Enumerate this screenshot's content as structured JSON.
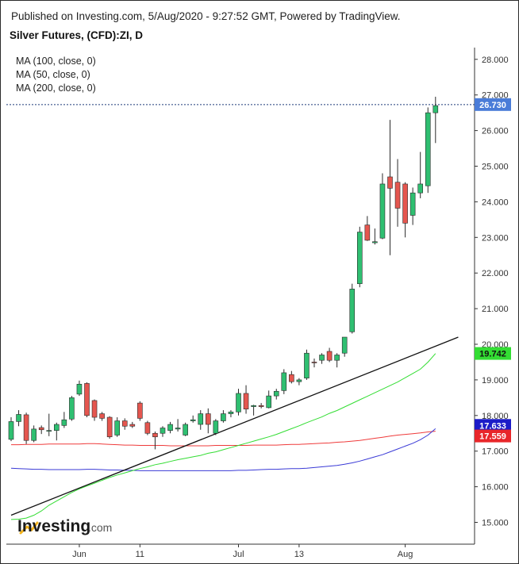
{
  "header": {
    "published": "Published on Investing.com, 5/Aug/2020 - 9:27:52 GMT, Powered by TradingView.",
    "title": "Silver Futures, (CFD):ZI, D"
  },
  "indicators": [
    {
      "label": "MA (100, close, 0)",
      "color": "#3a3ad6"
    },
    {
      "label": "MA (50, close, 0)",
      "color": "#ef3b3b"
    },
    {
      "label": "MA (200, close, 0)",
      "color": "#33dd33"
    }
  ],
  "logo": {
    "brand": "Investing",
    "suffix": ".com"
  },
  "chart_data": {
    "type": "candlestick",
    "y_ticks": [
      15,
      16,
      17,
      18,
      19,
      20,
      21,
      22,
      23,
      24,
      25,
      26,
      27,
      28
    ],
    "y_tick_labels": [
      "15.000",
      "16.000",
      "17.000",
      "18.000",
      "19.000",
      "20.000",
      "21.000",
      "22.000",
      "23.000",
      "24.000",
      "25.000",
      "26.000",
      "27.000",
      "28.000"
    ],
    "ylim": [
      14.75,
      28.35
    ],
    "x_tick_labels": [
      {
        "label": "Jun",
        "index": 9
      },
      {
        "label": "11",
        "index": 17
      },
      {
        "label": "Jul",
        "index": 30
      },
      {
        "label": "13",
        "index": 38
      },
      {
        "label": "Aug",
        "index": 52
      }
    ],
    "n_slots": 59,
    "candles": [
      {
        "o": 17.33,
        "h": 17.95,
        "l": 17.28,
        "c": 17.83
      },
      {
        "o": 17.83,
        "h": 18.15,
        "l": 17.7,
        "c": 18.03
      },
      {
        "o": 18.02,
        "h": 18.08,
        "l": 17.2,
        "c": 17.3
      },
      {
        "o": 17.3,
        "h": 17.72,
        "l": 17.25,
        "c": 17.62
      },
      {
        "o": 17.66,
        "h": 17.72,
        "l": 17.48,
        "c": 17.6
      },
      {
        "o": 17.56,
        "h": 18.05,
        "l": 17.42,
        "c": 17.58
      },
      {
        "o": 17.58,
        "h": 17.8,
        "l": 17.3,
        "c": 17.75
      },
      {
        "o": 17.72,
        "h": 18.1,
        "l": 17.65,
        "c": 17.88
      },
      {
        "o": 17.9,
        "h": 18.55,
        "l": 17.85,
        "c": 18.5
      },
      {
        "o": 18.6,
        "h": 18.98,
        "l": 18.55,
        "c": 18.88
      },
      {
        "o": 18.9,
        "h": 18.93,
        "l": 17.95,
        "c": 18.0
      },
      {
        "o": 18.42,
        "h": 18.45,
        "l": 17.85,
        "c": 17.95
      },
      {
        "o": 18.05,
        "h": 18.1,
        "l": 17.85,
        "c": 17.92
      },
      {
        "o": 17.95,
        "h": 17.98,
        "l": 17.35,
        "c": 17.4
      },
      {
        "o": 17.45,
        "h": 17.95,
        "l": 17.4,
        "c": 17.85
      },
      {
        "o": 17.85,
        "h": 17.92,
        "l": 17.6,
        "c": 17.7
      },
      {
        "o": 17.75,
        "h": 17.82,
        "l": 17.65,
        "c": 17.7
      },
      {
        "o": 18.35,
        "h": 18.4,
        "l": 17.85,
        "c": 17.92
      },
      {
        "o": 17.8,
        "h": 17.85,
        "l": 17.45,
        "c": 17.5
      },
      {
        "o": 17.5,
        "h": 17.55,
        "l": 17.05,
        "c": 17.4
      },
      {
        "o": 17.5,
        "h": 17.7,
        "l": 17.4,
        "c": 17.65
      },
      {
        "o": 17.58,
        "h": 17.82,
        "l": 17.5,
        "c": 17.75
      },
      {
        "o": 17.62,
        "h": 17.9,
        "l": 17.55,
        "c": 17.65
      },
      {
        "o": 17.45,
        "h": 17.8,
        "l": 17.42,
        "c": 17.75
      },
      {
        "o": 17.85,
        "h": 18.0,
        "l": 17.8,
        "c": 17.88
      },
      {
        "o": 17.75,
        "h": 18.15,
        "l": 17.6,
        "c": 18.05
      },
      {
        "o": 18.05,
        "h": 18.2,
        "l": 17.5,
        "c": 17.75
      },
      {
        "o": 17.5,
        "h": 17.9,
        "l": 17.45,
        "c": 17.85
      },
      {
        "o": 17.85,
        "h": 18.15,
        "l": 17.8,
        "c": 18.05
      },
      {
        "o": 18.05,
        "h": 18.15,
        "l": 17.95,
        "c": 18.1
      },
      {
        "o": 18.1,
        "h": 18.75,
        "l": 18.0,
        "c": 18.62
      },
      {
        "o": 18.62,
        "h": 18.85,
        "l": 18.05,
        "c": 18.18
      },
      {
        "o": 18.25,
        "h": 18.3,
        "l": 18.0,
        "c": 18.28
      },
      {
        "o": 18.28,
        "h": 18.35,
        "l": 18.2,
        "c": 18.25
      },
      {
        "o": 18.22,
        "h": 18.7,
        "l": 18.2,
        "c": 18.55
      },
      {
        "o": 18.55,
        "h": 18.75,
        "l": 18.45,
        "c": 18.68
      },
      {
        "o": 18.7,
        "h": 19.3,
        "l": 18.6,
        "c": 19.2
      },
      {
        "o": 19.15,
        "h": 19.25,
        "l": 18.9,
        "c": 18.95
      },
      {
        "o": 18.95,
        "h": 19.05,
        "l": 18.85,
        "c": 19.0
      },
      {
        "o": 19.05,
        "h": 19.85,
        "l": 19.0,
        "c": 19.75
      },
      {
        "o": 19.5,
        "h": 19.6,
        "l": 19.35,
        "c": 19.48
      },
      {
        "o": 19.55,
        "h": 19.75,
        "l": 19.45,
        "c": 19.7
      },
      {
        "o": 19.8,
        "h": 19.9,
        "l": 19.5,
        "c": 19.55
      },
      {
        "o": 19.55,
        "h": 19.75,
        "l": 19.35,
        "c": 19.7
      },
      {
        "o": 19.75,
        "h": 20.2,
        "l": 19.65,
        "c": 20.2
      },
      {
        "o": 20.35,
        "h": 21.7,
        "l": 20.3,
        "c": 21.55
      },
      {
        "o": 21.7,
        "h": 23.3,
        "l": 21.6,
        "c": 23.15
      },
      {
        "o": 23.35,
        "h": 23.6,
        "l": 22.9,
        "c": 22.92
      },
      {
        "o": 22.85,
        "h": 23.25,
        "l": 22.8,
        "c": 22.88
      },
      {
        "o": 22.98,
        "h": 24.8,
        "l": 22.95,
        "c": 24.5
      },
      {
        "o": 24.7,
        "h": 26.3,
        "l": 22.5,
        "c": 24.38
      },
      {
        "o": 24.55,
        "h": 25.2,
        "l": 23.3,
        "c": 23.82
      },
      {
        "o": 24.5,
        "h": 24.55,
        "l": 23.0,
        "c": 23.4
      },
      {
        "o": 23.62,
        "h": 24.4,
        "l": 23.35,
        "c": 24.25
      },
      {
        "o": 24.25,
        "h": 25.4,
        "l": 24.1,
        "c": 24.5
      },
      {
        "o": 24.45,
        "h": 26.65,
        "l": 24.25,
        "c": 26.5
      },
      {
        "o": 26.5,
        "h": 26.95,
        "l": 25.65,
        "c": 26.7
      }
    ],
    "ma_50": {
      "name": "MA (50, close, 0)",
      "color": "#ef3b3b",
      "values": [
        17.18,
        17.18,
        17.19,
        17.19,
        17.19,
        17.2,
        17.2,
        17.2,
        17.2,
        17.2,
        17.21,
        17.21,
        17.2,
        17.19,
        17.18,
        17.17,
        17.17,
        17.16,
        17.16,
        17.16,
        17.16,
        17.15,
        17.15,
        17.15,
        17.15,
        17.15,
        17.15,
        17.16,
        17.16,
        17.16,
        17.16,
        17.16,
        17.17,
        17.17,
        17.17,
        17.17,
        17.18,
        17.19,
        17.19,
        17.2,
        17.21,
        17.22,
        17.23,
        17.25,
        17.26,
        17.28,
        17.3,
        17.33,
        17.36,
        17.39,
        17.42,
        17.45,
        17.47,
        17.49,
        17.51,
        17.54,
        17.56
      ]
    },
    "ma_100": {
      "name": "MA (100, close, 0)",
      "color": "#3a3ad6",
      "values": [
        16.52,
        16.51,
        16.5,
        16.49,
        16.49,
        16.48,
        16.48,
        16.48,
        16.48,
        16.48,
        16.49,
        16.49,
        16.48,
        16.47,
        16.47,
        16.46,
        16.46,
        16.45,
        16.45,
        16.45,
        16.45,
        16.45,
        16.45,
        16.45,
        16.45,
        16.45,
        16.45,
        16.45,
        16.45,
        16.45,
        16.46,
        16.46,
        16.47,
        16.48,
        16.49,
        16.49,
        16.5,
        16.51,
        16.51,
        16.52,
        16.54,
        16.56,
        16.58,
        16.6,
        16.63,
        16.67,
        16.72,
        16.78,
        16.84,
        16.9,
        16.98,
        17.06,
        17.14,
        17.22,
        17.32,
        17.45,
        17.63
      ]
    },
    "ma_200": {
      "name": "MA (200, close, 0)",
      "color": "#33dd33",
      "values": [
        15.08,
        15.09,
        15.12,
        15.2,
        15.32,
        15.48,
        15.6,
        15.72,
        15.84,
        15.94,
        16.02,
        16.1,
        16.18,
        16.26,
        16.33,
        16.39,
        16.45,
        16.51,
        16.56,
        16.62,
        16.66,
        16.71,
        16.76,
        16.8,
        16.84,
        16.88,
        16.94,
        16.98,
        17.04,
        17.1,
        17.16,
        17.22,
        17.28,
        17.34,
        17.4,
        17.47,
        17.55,
        17.63,
        17.71,
        17.8,
        17.88,
        17.96,
        18.06,
        18.14,
        18.24,
        18.34,
        18.44,
        18.54,
        18.64,
        18.74,
        18.84,
        18.94,
        19.06,
        19.18,
        19.3,
        19.5,
        19.74
      ]
    },
    "trendline": {
      "from": {
        "index": 0,
        "value": 15.2
      },
      "to": {
        "index": 59,
        "value": 20.2
      }
    },
    "last_price_line": 26.73,
    "price_tags": [
      {
        "label": "26.730",
        "value": 26.73,
        "bg": "#4a7cd8",
        "fg": "#ffffff"
      },
      {
        "label": "19.742",
        "value": 19.742,
        "bg": "#33dd33",
        "fg": "#111111"
      },
      {
        "label": "17.633",
        "value": 17.633,
        "bg": "#1c1cc8",
        "fg": "#ffffff"
      },
      {
        "label": "17.559",
        "value": 17.559,
        "bg": "#e8262a",
        "fg": "#ffffff"
      }
    ],
    "colors": {
      "up": "#2fbf71",
      "down": "#e5564f",
      "wick": "#2a2a2a",
      "last_line": "#1f3a7a",
      "trend": "#111111"
    }
  }
}
